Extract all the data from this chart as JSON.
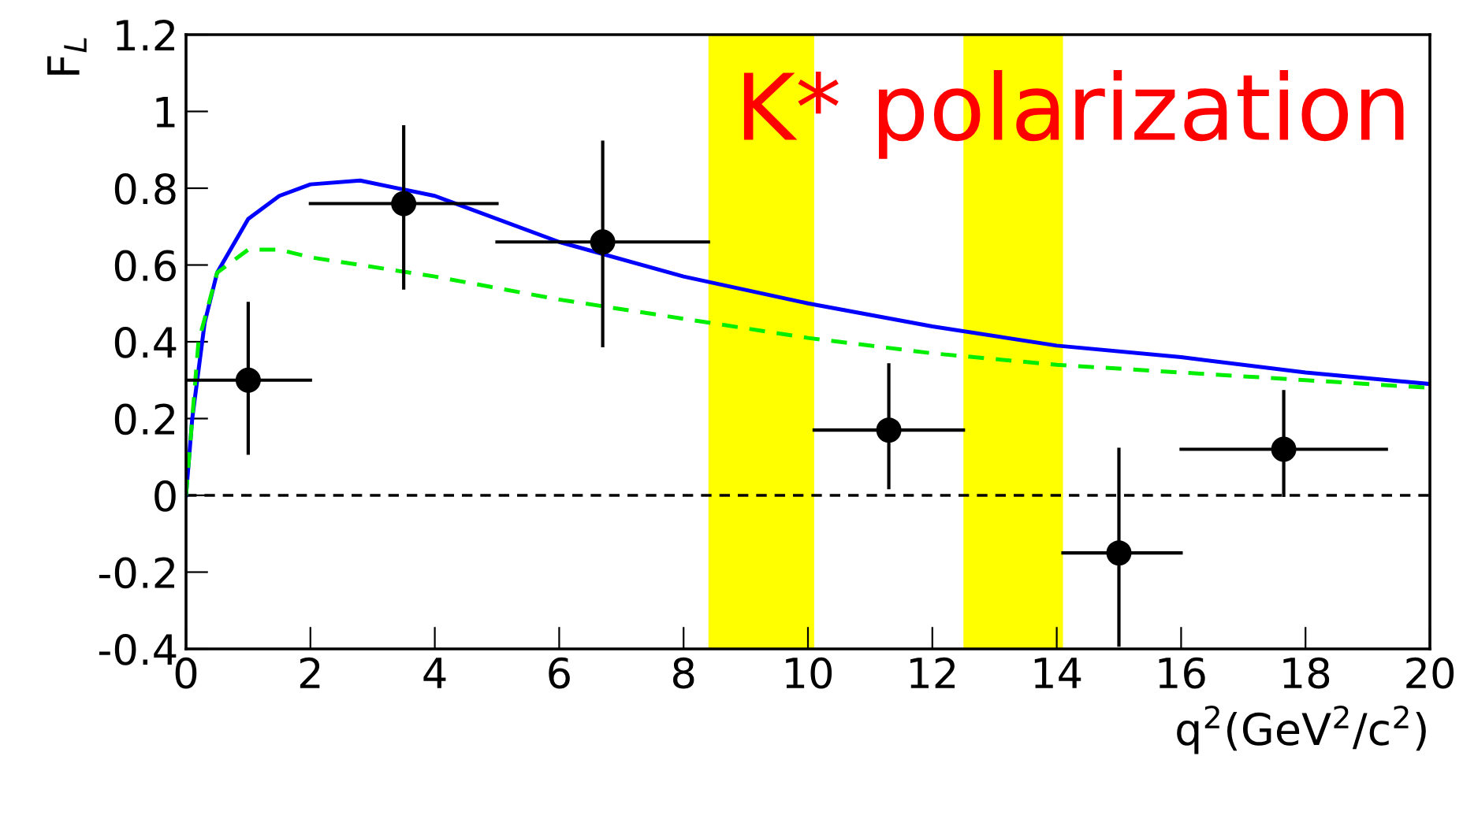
{
  "chart_data": {
    "type": "scatter",
    "xlabel": "q$^{2}$(GeV$^{2}$/c$^{2}$)",
    "ylabel": "F$_{L}$",
    "xlim": [
      0,
      20
    ],
    "ylim": [
      -0.4,
      1.2
    ],
    "xticks": [
      0,
      2,
      4,
      6,
      8,
      10,
      12,
      14,
      16,
      18,
      20
    ],
    "yticks": [
      -0.4,
      -0.2,
      0,
      0.2,
      0.4,
      0.6,
      0.8,
      1,
      1.2
    ],
    "grid": false,
    "legend": false,
    "bands": [
      {
        "axis": "x",
        "from": 8.4,
        "to": 10.1,
        "color": "#ffff00"
      },
      {
        "axis": "x",
        "from": 12.5,
        "to": 14.1,
        "color": "#ffff00"
      }
    ],
    "ref_lines": [
      {
        "axis": "y",
        "value": 0,
        "color": "#000000",
        "line_style": "dashed"
      }
    ],
    "annotations": [
      {
        "text": "K* polarization"
      }
    ],
    "series": [
      {
        "type": "line",
        "color": "#0000ff",
        "line_style": "solid",
        "marker": "none",
        "x": [
          0,
          0.1,
          0.3,
          0.5,
          1,
          1.5,
          2,
          2.8,
          4,
          6,
          8,
          10,
          12,
          14,
          16,
          18,
          20
        ],
        "values": [
          0,
          0.2,
          0.45,
          0.58,
          0.72,
          0.78,
          0.81,
          0.82,
          0.78,
          0.66,
          0.57,
          0.5,
          0.44,
          0.39,
          0.36,
          0.32,
          0.29
        ]
      },
      {
        "type": "line",
        "color": "#00ee00",
        "line_style": "dashed",
        "marker": "none",
        "x": [
          0,
          0.2,
          0.5,
          1,
          1.5,
          2,
          4,
          6,
          8,
          10,
          12,
          14,
          16,
          18,
          20
        ],
        "values": [
          0,
          0.4,
          0.58,
          0.64,
          0.64,
          0.62,
          0.57,
          0.51,
          0.46,
          0.41,
          0.37,
          0.34,
          0.32,
          0.3,
          0.28
        ]
      },
      {
        "color": "#000000",
        "marker": "circle",
        "x": [
          1.0,
          3.5,
          6.7,
          11.3,
          15.0,
          17.65
        ],
        "values": [
          0.3,
          0.76,
          0.66,
          0.17,
          -0.15,
          0.12
        ],
        "errors": [
          [
            0.11,
            0.5
          ],
          [
            0.54,
            0.96
          ],
          [
            0.39,
            0.92
          ],
          [
            0.02,
            0.34
          ],
          [
            -0.39,
            0.12
          ],
          [
            0.0,
            0.27
          ]
        ],
        "xerrors": [
          [
            0,
            2
          ],
          [
            2,
            5
          ],
          [
            5,
            8.4
          ],
          [
            10.1,
            12.5
          ],
          [
            14.1,
            16
          ],
          [
            16,
            19.3
          ]
        ]
      }
    ]
  }
}
